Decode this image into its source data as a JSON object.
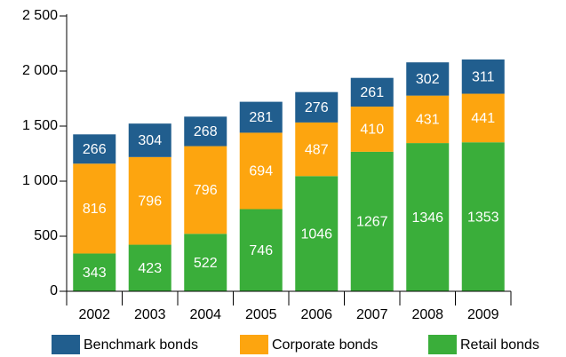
{
  "chart_data": {
    "type": "stacked_bar",
    "categories": [
      "2002",
      "2003",
      "2004",
      "2005",
      "2006",
      "2007",
      "2008",
      "2009"
    ],
    "series": [
      {
        "name": "Benchmark bonds",
        "color": "#215e8e",
        "values": [
          266,
          304,
          268,
          281,
          276,
          261,
          302,
          311
        ]
      },
      {
        "name": "Corporate bonds",
        "color": "#fda50f",
        "values": [
          816,
          796,
          796,
          694,
          487,
          410,
          431,
          441
        ]
      },
      {
        "name": "Retail bonds",
        "color": "#3aae3a",
        "values": [
          343,
          423,
          522,
          746,
          1046,
          1267,
          1346,
          1353
        ]
      }
    ],
    "ylim": [
      0,
      2500
    ],
    "yticks": [
      0,
      500,
      {
        "value": 1000,
        "label": "1 000"
      },
      {
        "value": 1500,
        "label": "1 500"
      },
      {
        "value": 2000,
        "label": "2 000"
      },
      {
        "value": 2500,
        "label": "2 500"
      }
    ],
    "grid": false,
    "legend": "bottom"
  }
}
